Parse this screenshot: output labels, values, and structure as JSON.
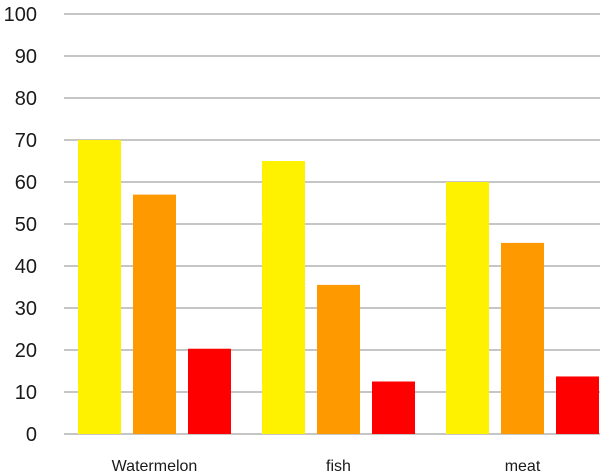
{
  "chart_data": {
    "type": "bar",
    "categories": [
      "Watermelon",
      "fish",
      "meat"
    ],
    "series": [
      {
        "color": "#FFF200",
        "values": [
          70,
          65,
          60
        ]
      },
      {
        "color": "#FF9900",
        "values": [
          57,
          35.5,
          45.5
        ]
      },
      {
        "color": "#FF0000",
        "values": [
          20.3,
          12.5,
          13.7
        ]
      }
    ],
    "ylim": [
      0,
      100
    ],
    "yticks": [
      "0",
      "10",
      "20",
      "30",
      "40",
      "50",
      "60",
      "70",
      "80",
      "90",
      "100"
    ],
    "grid": true,
    "legend": "none"
  }
}
